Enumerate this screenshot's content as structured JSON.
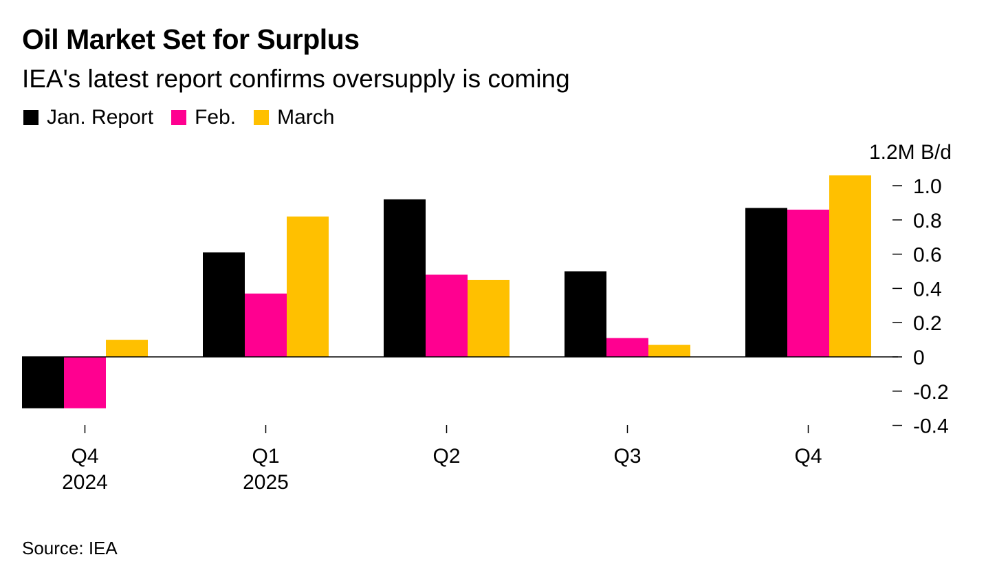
{
  "header": {
    "title": "Oil Market Set for Surplus",
    "subtitle": "IEA's latest report confirms oversupply is coming"
  },
  "footer": {
    "source": "Source: IEA"
  },
  "chart_data": {
    "type": "bar",
    "title": "Oil Market Set for Surplus",
    "subtitle": "IEA's latest report confirms oversupply is coming",
    "xlabel": "",
    "ylabel": "",
    "y_unit_label": "1.2M B/d",
    "ylim": [
      -0.4,
      1.2
    ],
    "y_ticks": [
      1.0,
      0.8,
      0.6,
      0.4,
      0.2,
      0,
      -0.2,
      -0.4
    ],
    "y_tick_labels": [
      "1.0",
      "0.8",
      "0.6",
      "0.4",
      "0.2",
      "0",
      "-0.2",
      "-0.4"
    ],
    "categories": [
      "Q4",
      "Q1",
      "Q2",
      "Q3",
      "Q4"
    ],
    "category_sublabels": [
      "2024",
      "2025",
      "",
      "",
      ""
    ],
    "grid": false,
    "legend_position": "top-left",
    "series": [
      {
        "name": "Jan. Report",
        "color": "#000000",
        "values": [
          -0.3,
          0.61,
          0.92,
          0.5,
          0.87
        ]
      },
      {
        "name": "Feb.",
        "color": "#ff0090",
        "values": [
          -0.3,
          0.37,
          0.48,
          0.11,
          0.86
        ]
      },
      {
        "name": "March",
        "color": "#ffc000",
        "values": [
          0.1,
          0.82,
          0.45,
          0.07,
          1.06
        ]
      }
    ]
  }
}
